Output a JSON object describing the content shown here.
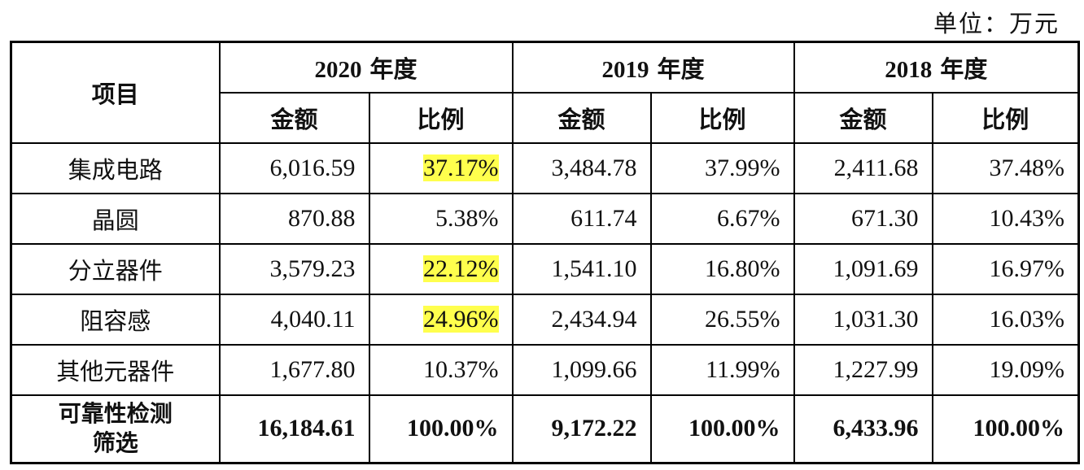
{
  "unit": "单位：万元",
  "header": {
    "item": "项目",
    "years": [
      "2020",
      "2019",
      "2018"
    ],
    "year_suffix": " 年度",
    "amount": "金额",
    "ratio": "比例"
  },
  "rows": [
    {
      "label": "集成电路",
      "cells": [
        "6,016.59",
        "37.17%",
        "3,484.78",
        "37.99%",
        "2,411.68",
        "37.48%"
      ]
    },
    {
      "label": "晶圆",
      "cells": [
        "870.88",
        "5.38%",
        "611.74",
        "6.67%",
        "671.30",
        "10.43%"
      ]
    },
    {
      "label": "分立器件",
      "cells": [
        "3,579.23",
        "22.12%",
        "1,541.10",
        "16.80%",
        "1,091.69",
        "16.97%"
      ]
    },
    {
      "label": "阻容感",
      "cells": [
        "4,040.11",
        "24.96%",
        "2,434.94",
        "26.55%",
        "1,031.30",
        "16.03%"
      ]
    },
    {
      "label": "其他元器件",
      "cells": [
        "1,677.80",
        "10.37%",
        "1,099.66",
        "11.99%",
        "1,227.99",
        "19.09%"
      ]
    }
  ],
  "total": {
    "label_line1": "可靠性检测",
    "label_line2": "筛选",
    "cells": [
      "16,184.61",
      "100.00%",
      "9,172.22",
      "100.00%",
      "6,433.96",
      "100.00%"
    ]
  },
  "highlight_color": "#ffff4d"
}
